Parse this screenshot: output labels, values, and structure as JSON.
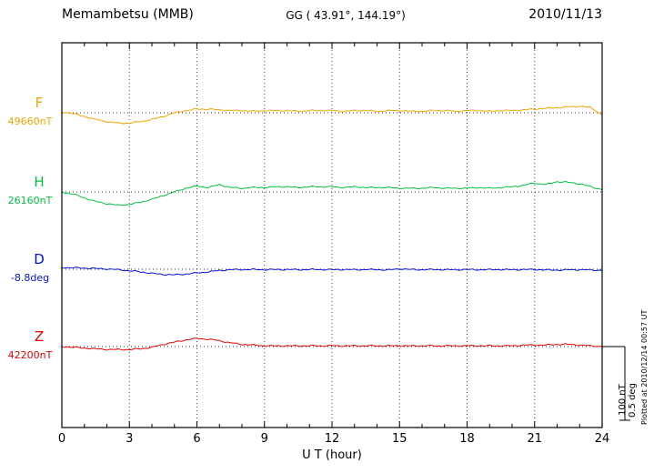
{
  "header": {
    "station": "Memambetsu (MMB)",
    "coordinates": "GG ( 43.91°, 144.19°)",
    "date": "2010/11/13"
  },
  "axis": {
    "x_label": "U T (hour)",
    "x_ticks": [
      0,
      3,
      6,
      9,
      12,
      15,
      18,
      21,
      24
    ],
    "x_range": [
      0,
      24
    ]
  },
  "scalebar": {
    "labels": [
      "100 nT",
      "0.5 deg"
    ]
  },
  "footer": {
    "plotted_at": "Plotted at 2010/12/14 00:57 UT"
  },
  "chart_data": {
    "type": "line",
    "title": "Memambetsu (MMB) magnetogram 2010/11/13",
    "xlabel": "U T (hour)",
    "x_unit": "hour",
    "x_range": [
      0,
      24
    ],
    "x_step": 0.5,
    "grid": "dotted vertical lines every 3 hours; dotted horizontal baseline per component",
    "legend_position": "left margin component labels",
    "scale": {
      "nT_per_bar": 100,
      "deg_per_bar": 0.5
    },
    "series": [
      {
        "name": "F",
        "unit": "nT",
        "color": "#f0a500",
        "baseline_label": "49660nT",
        "baseline_value": 49660,
        "offsets": [
          1,
          -1,
          -5,
          -9,
          -12,
          -14,
          -14,
          -12,
          -9,
          -5,
          0,
          3,
          5,
          5,
          4,
          3,
          3,
          2,
          3,
          3,
          3,
          2,
          3,
          3,
          3,
          2,
          3,
          3,
          2,
          3,
          3,
          2,
          2,
          3,
          3,
          2,
          3,
          3,
          2,
          3,
          3,
          4,
          5,
          6,
          7,
          8,
          9,
          7,
          -3
        ]
      },
      {
        "name": "H",
        "unit": "nT",
        "color": "#00c040",
        "baseline_label": "26160nT",
        "baseline_value": 26160,
        "offsets": [
          0,
          -3,
          -8,
          -13,
          -16,
          -18,
          -17,
          -14,
          -10,
          -5,
          0,
          5,
          8,
          6,
          10,
          6,
          5,
          6,
          6,
          7,
          7,
          6,
          7,
          7,
          7,
          6,
          7,
          6,
          6,
          6,
          5,
          5,
          5,
          6,
          5,
          5,
          5,
          6,
          5,
          6,
          7,
          9,
          12,
          10,
          14,
          13,
          11,
          7,
          3
        ]
      },
      {
        "name": "D",
        "unit": "deg",
        "color": "#0010dd",
        "baseline_label": "-8.8deg",
        "baseline_value": -8.8,
        "offsets": [
          0.012,
          0.01,
          0.008,
          0.005,
          0.002,
          -0.003,
          -0.01,
          -0.018,
          -0.028,
          -0.035,
          -0.038,
          -0.033,
          -0.025,
          -0.018,
          -0.008,
          -0.003,
          -0.002,
          -0.002,
          -0.003,
          -0.002,
          -0.002,
          -0.003,
          -0.002,
          -0.002,
          -0.003,
          -0.002,
          -0.003,
          -0.002,
          -0.003,
          -0.005,
          0.003,
          -0.002,
          -0.003,
          -0.002,
          -0.003,
          -0.003,
          -0.002,
          -0.003,
          -0.003,
          -0.002,
          -0.003,
          -0.002,
          -0.002,
          -0.005,
          -0.006,
          -0.004,
          -0.003,
          -0.005,
          -0.008
        ]
      },
      {
        "name": "Z",
        "unit": "nT",
        "color": "#e60000",
        "baseline_label": "42200nT",
        "baseline_value": 42200,
        "offsets": [
          0,
          -1,
          -2,
          -3,
          -4,
          -4,
          -4,
          -3,
          -1,
          3,
          6,
          9,
          11,
          10,
          8,
          5,
          3,
          2,
          1,
          1,
          1,
          1,
          1,
          1,
          1,
          1,
          1,
          1,
          1,
          1,
          1,
          1,
          1,
          1,
          1,
          1,
          1,
          1,
          1,
          1,
          1,
          2,
          2,
          2,
          3,
          3,
          2,
          1,
          0
        ]
      }
    ]
  }
}
